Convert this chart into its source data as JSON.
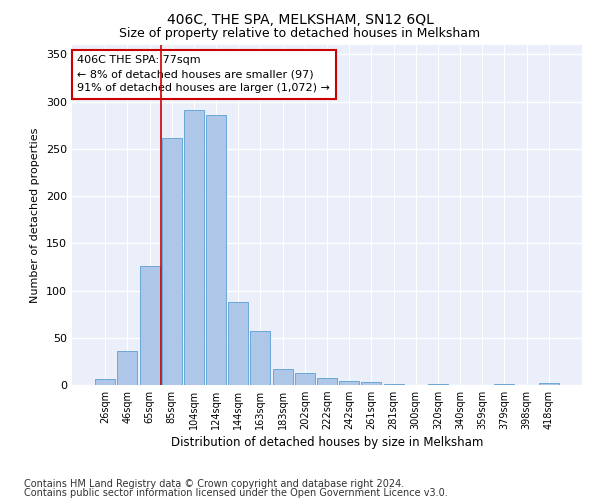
{
  "title": "406C, THE SPA, MELKSHAM, SN12 6QL",
  "subtitle": "Size of property relative to detached houses in Melksham",
  "xlabel": "Distribution of detached houses by size in Melksham",
  "ylabel": "Number of detached properties",
  "categories": [
    "26sqm",
    "46sqm",
    "65sqm",
    "85sqm",
    "104sqm",
    "124sqm",
    "144sqm",
    "163sqm",
    "183sqm",
    "202sqm",
    "222sqm",
    "242sqm",
    "261sqm",
    "281sqm",
    "300sqm",
    "320sqm",
    "340sqm",
    "359sqm",
    "379sqm",
    "398sqm",
    "418sqm"
  ],
  "values": [
    6,
    36,
    126,
    261,
    291,
    286,
    88,
    57,
    17,
    13,
    7,
    4,
    3,
    1,
    0,
    1,
    0,
    0,
    1,
    0,
    2
  ],
  "bar_color": "#aec6e8",
  "bar_edge_color": "#5a9fd4",
  "vline_x": 2.5,
  "vline_color": "#cc0000",
  "annotation_text": "406C THE SPA: 77sqm\n← 8% of detached houses are smaller (97)\n91% of detached houses are larger (1,072) →",
  "annotation_box_color": "#ffffff",
  "annotation_box_edge": "#cc0000",
  "ylim": [
    0,
    360
  ],
  "yticks": [
    0,
    50,
    100,
    150,
    200,
    250,
    300,
    350
  ],
  "footer1": "Contains HM Land Registry data © Crown copyright and database right 2024.",
  "footer2": "Contains public sector information licensed under the Open Government Licence v3.0.",
  "bg_color": "#eaeff9",
  "grid_color": "#ffffff",
  "title_fontsize": 10,
  "subtitle_fontsize": 9,
  "annotation_fontsize": 8,
  "footer_fontsize": 7
}
